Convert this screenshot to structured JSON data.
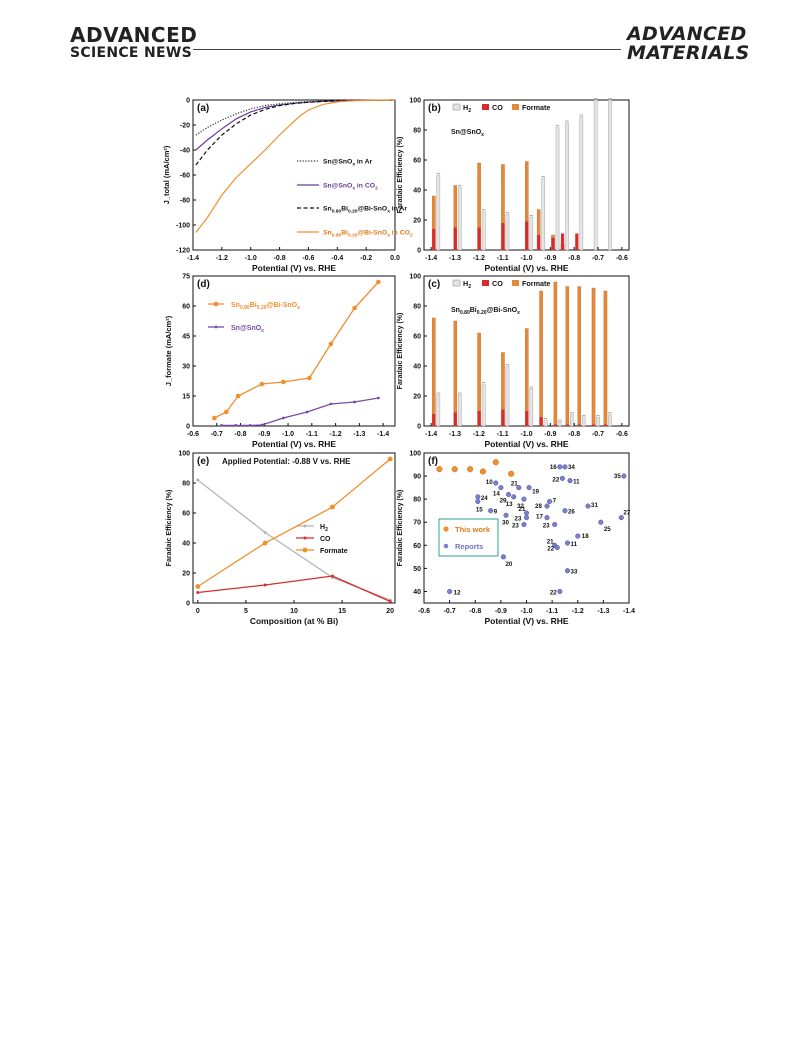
{
  "header": {
    "left_line1": "ADVANCED",
    "left_line2": "SCIENCE NEWS",
    "right_line1": "ADVANCED",
    "right_line2": "MATERIALS"
  },
  "chart_data": [
    {
      "id": "a",
      "panel_label": "(a)",
      "type": "line",
      "xlabel": "Potential (V) vs. RHE",
      "ylabel": "J_total (mA/cm²)",
      "xlim": [
        -1.4,
        0.0
      ],
      "ylim": [
        -120,
        0
      ],
      "x_reversed": false,
      "xticks": [
        -1.4,
        -1.2,
        -1.0,
        -0.8,
        -0.6,
        -0.4,
        -0.2,
        0.0
      ],
      "yticks": [
        0,
        -20,
        -40,
        -60,
        -80,
        -100,
        -120
      ],
      "legend_position": "right",
      "series": [
        {
          "name": "Sn@SnOx in Ar",
          "color": "#333333",
          "dash": "dot",
          "x": [
            -1.38,
            -1.3,
            -1.2,
            -1.1,
            -1.0,
            -0.9,
            -0.8,
            -0.7,
            -0.6,
            -0.5,
            -0.4,
            -0.3,
            -0.2,
            -0.1,
            0.0
          ],
          "y": [
            -28,
            -22,
            -16,
            -11,
            -7,
            -4.5,
            -3,
            -2,
            -1.3,
            -0.8,
            -0.5,
            -0.3,
            -0.2,
            -0.1,
            0
          ]
        },
        {
          "name": "Sn@SnOx in CO2",
          "color": "#6a3d9a",
          "dash": "solid",
          "x": [
            -1.38,
            -1.3,
            -1.2,
            -1.1,
            -1.0,
            -0.9,
            -0.8,
            -0.7,
            -0.6,
            -0.5,
            -0.4,
            -0.3,
            -0.2,
            -0.1,
            0.0
          ],
          "y": [
            -40,
            -32,
            -23,
            -15,
            -9.5,
            -6,
            -4,
            -2.6,
            -1.7,
            -1.1,
            -0.7,
            -0.4,
            -0.2,
            -0.1,
            0
          ]
        },
        {
          "name": "Sn0.80Bi0.20@Bi-SnOx in Ar",
          "color": "#111111",
          "dash": "dash",
          "x": [
            -1.38,
            -1.3,
            -1.2,
            -1.1,
            -1.0,
            -0.9,
            -0.8,
            -0.7,
            -0.6,
            -0.5,
            -0.4,
            -0.3,
            -0.2,
            -0.1,
            0.0
          ],
          "y": [
            -52,
            -40,
            -28,
            -19,
            -12,
            -7.5,
            -4.5,
            -2.8,
            -1.8,
            -1.1,
            -0.7,
            -0.4,
            -0.2,
            -0.1,
            0
          ]
        },
        {
          "name": "Sn0.80Bi0.20@Bi-SnOx in CO2",
          "color": "#f28e2b",
          "dash": "solid",
          "x": [
            -1.38,
            -1.3,
            -1.2,
            -1.1,
            -1.0,
            -0.9,
            -0.8,
            -0.7,
            -0.65,
            -0.6,
            -0.5,
            -0.4,
            -0.3,
            -0.2,
            -0.1,
            0.0
          ],
          "y": [
            -106,
            -94,
            -76,
            -62,
            -51,
            -40,
            -28,
            -17,
            -12,
            -8,
            -3.5,
            -1.5,
            -0.6,
            -0.3,
            -0.1,
            0
          ]
        }
      ]
    },
    {
      "id": "b",
      "panel_label": "(b)",
      "type": "bar",
      "annotation": "Sn@SnOx",
      "xlabel": "Potential (V) vs. RHE",
      "ylabel": "Faradaic Efficiency (%)",
      "xlim": [
        -1.43,
        -0.57
      ],
      "ylim": [
        0,
        100
      ],
      "x_reversed": true,
      "xticks": [
        -1.4,
        -1.3,
        -1.2,
        -1.1,
        -1.0,
        -0.9,
        -0.8,
        -0.7,
        -0.6
      ],
      "yticks": [
        0,
        20,
        40,
        60,
        80,
        100
      ],
      "legend_position": "top",
      "x": [
        -1.38,
        -1.29,
        -1.19,
        -1.09,
        -0.99,
        -0.94,
        -0.88,
        -0.84,
        -0.78,
        -0.72,
        -0.66
      ],
      "series": [
        {
          "name": "H2",
          "color": "#e4e4e4",
          "values": [
            50,
            42,
            26,
            24,
            22,
            48,
            82,
            85,
            89,
            100,
            100
          ]
        },
        {
          "name": "CO",
          "color": "#d92b2b",
          "values": [
            14,
            15,
            15,
            18,
            19,
            10,
            8,
            11,
            11,
            0,
            0
          ]
        },
        {
          "name": "Formate",
          "color": "#e5883a",
          "values": [
            36,
            43,
            58,
            57,
            59,
            27,
            10,
            4,
            0,
            0,
            0
          ]
        }
      ]
    },
    {
      "id": "c",
      "panel_label": "(c)",
      "type": "bar",
      "annotation": "Sn0.80Bi0.20@Bi-SnOx",
      "xlabel": "Potential (V) vs. RHE",
      "ylabel": "Faradaic Efficiency (%)",
      "xlim": [
        -1.43,
        -0.57
      ],
      "ylim": [
        0,
        100
      ],
      "x_reversed": true,
      "xticks": [
        -1.4,
        -1.3,
        -1.2,
        -1.1,
        -1.0,
        -0.9,
        -0.8,
        -0.7,
        -0.6
      ],
      "yticks": [
        0,
        20,
        40,
        60,
        80,
        100
      ],
      "legend_position": "top",
      "x": [
        -1.38,
        -1.29,
        -1.19,
        -1.09,
        -0.99,
        -0.93,
        -0.87,
        -0.82,
        -0.77,
        -0.71,
        -0.66
      ],
      "series": [
        {
          "name": "H2",
          "color": "#e4e4e4",
          "values": [
            21,
            21,
            28,
            40,
            25,
            4,
            3,
            8,
            6,
            6,
            8
          ]
        },
        {
          "name": "CO",
          "color": "#d92b2b",
          "values": [
            8,
            9,
            10,
            11,
            10,
            6,
            1,
            1,
            1,
            1,
            1
          ]
        },
        {
          "name": "Formate",
          "color": "#e5883a",
          "values": [
            72,
            70,
            62,
            49,
            65,
            90,
            96,
            93,
            93,
            92,
            90
          ]
        }
      ]
    },
    {
      "id": "d",
      "panel_label": "(d)",
      "type": "line",
      "xlabel": "Potential (V) vs. RHE",
      "ylabel": "J_formate (mA/cm²)",
      "xlim": [
        -0.6,
        -1.45
      ],
      "ylim": [
        0,
        75
      ],
      "x_reversed": true,
      "xticks": [
        -0.6,
        -0.7,
        -0.8,
        -0.9,
        -1.0,
        -1.1,
        -1.2,
        -1.3,
        -1.4
      ],
      "yticks": [
        0,
        15,
        30,
        45,
        60,
        75
      ],
      "legend_position": "top-left",
      "series": [
        {
          "name": "Sn0.80Bi0.20@Bi-SnOx",
          "color": "#f28e2b",
          "x": [
            -0.69,
            -0.74,
            -0.79,
            -0.89,
            -0.98,
            -1.09,
            -1.18,
            -1.28,
            -1.38
          ],
          "y": [
            4,
            7,
            15,
            21,
            22,
            24,
            41,
            59,
            72
          ]
        },
        {
          "name": "Sn@SnOx",
          "color": "#7b4aa8",
          "x": [
            -0.72,
            -0.78,
            -0.84,
            -0.89,
            -0.98,
            -1.08,
            -1.18,
            -1.28,
            -1.38
          ],
          "y": [
            0.3,
            0.3,
            0.3,
            0.5,
            4,
            7,
            11,
            12,
            14
          ]
        }
      ]
    },
    {
      "id": "e",
      "panel_label": "(e)",
      "type": "line",
      "annotation": "Applied Potential: -0.88 V vs. RHE",
      "xlabel": "Composition (at % Bi)",
      "ylabel": "Faradaic Efficiency (%)",
      "xlim": [
        -0.5,
        20.5
      ],
      "ylim": [
        0,
        100
      ],
      "x_reversed": false,
      "xticks": [
        0,
        5,
        10,
        15,
        20
      ],
      "yticks": [
        0,
        20,
        40,
        60,
        80,
        100
      ],
      "legend_position": "bottom-right",
      "series": [
        {
          "name": "H2",
          "color": "#b5b5b5",
          "x": [
            0,
            7,
            14,
            20
          ],
          "y": [
            82,
            47,
            17,
            2
          ]
        },
        {
          "name": "CO",
          "color": "#d92b2b",
          "x": [
            0,
            7,
            14,
            20
          ],
          "y": [
            7,
            12,
            18,
            1
          ]
        },
        {
          "name": "Formate",
          "color": "#f28e2b",
          "x": [
            0,
            7,
            14,
            20
          ],
          "y": [
            11,
            40,
            64,
            96
          ]
        }
      ]
    },
    {
      "id": "f",
      "panel_label": "(f)",
      "type": "scatter",
      "xlabel": "Potential (V) vs. RHE",
      "ylabel": "Faradaic Efficiency (%)",
      "xlim": [
        -0.6,
        -1.4
      ],
      "ylim": [
        35,
        100
      ],
      "x_reversed": true,
      "xticks": [
        -0.6,
        -0.7,
        -0.8,
        -0.9,
        -1.0,
        -1.1,
        -1.2,
        -1.3,
        -1.4
      ],
      "yticks": [
        40,
        50,
        60,
        70,
        80,
        90,
        100
      ],
      "legend_position": "center-left",
      "series": [
        {
          "name": "This work",
          "color": "#f28e2b",
          "points": [
            {
              "x": -0.66,
              "y": 93
            },
            {
              "x": -0.72,
              "y": 93
            },
            {
              "x": -0.78,
              "y": 93
            },
            {
              "x": -0.83,
              "y": 92
            },
            {
              "x": -0.88,
              "y": 96
            },
            {
              "x": -0.94,
              "y": 91
            }
          ]
        },
        {
          "name": "Reports",
          "color": "#7b7fd0",
          "points": [
            {
              "x": -1.13,
              "y": 94,
              "label": "16"
            },
            {
              "x": -1.15,
              "y": 94,
              "label": "34"
            },
            {
              "x": -1.14,
              "y": 89,
              "label": "22"
            },
            {
              "x": -1.17,
              "y": 88,
              "label": "11"
            },
            {
              "x": -1.38,
              "y": 90,
              "label": "35"
            },
            {
              "x": -0.88,
              "y": 87,
              "label": "10"
            },
            {
              "x": -0.9,
              "y": 85,
              "label": "14"
            },
            {
              "x": -0.97,
              "y": 85,
              "label": "21"
            },
            {
              "x": -1.01,
              "y": 85,
              "label": "19"
            },
            {
              "x": -0.81,
              "y": 81,
              "label": "24"
            },
            {
              "x": -0.93,
              "y": 82,
              "label": "29"
            },
            {
              "x": -0.95,
              "y": 81,
              "label": "13"
            },
            {
              "x": -0.99,
              "y": 80,
              "label": "32"
            },
            {
              "x": -1.09,
              "y": 79,
              "label": "7"
            },
            {
              "x": -1.08,
              "y": 77,
              "label": "28"
            },
            {
              "x": -0.81,
              "y": 79,
              "label": "15"
            },
            {
              "x": -1.24,
              "y": 77,
              "label": "31"
            },
            {
              "x": -1.37,
              "y": 72,
              "label": "27"
            },
            {
              "x": -0.86,
              "y": 75,
              "label": "9"
            },
            {
              "x": -1.0,
              "y": 74,
              "label": "21"
            },
            {
              "x": -0.92,
              "y": 73,
              "label": "30"
            },
            {
              "x": -1.0,
              "y": 72,
              "label": "23"
            },
            {
              "x": -1.08,
              "y": 72,
              "label": "17"
            },
            {
              "x": -1.15,
              "y": 75,
              "label": "26"
            },
            {
              "x": -0.99,
              "y": 69,
              "label": "23"
            },
            {
              "x": -1.11,
              "y": 69,
              "label": "23"
            },
            {
              "x": -1.29,
              "y": 70,
              "label": "25"
            },
            {
              "x": -1.2,
              "y": 64,
              "label": "18"
            },
            {
              "x": -1.11,
              "y": 60,
              "label": "21"
            },
            {
              "x": -1.16,
              "y": 61,
              "label": "11"
            },
            {
              "x": -1.12,
              "y": 59,
              "label": "22"
            },
            {
              "x": -0.91,
              "y": 55,
              "label": "20"
            },
            {
              "x": -1.16,
              "y": 49,
              "label": "33"
            },
            {
              "x": -0.7,
              "y": 40,
              "label": "12"
            },
            {
              "x": -1.13,
              "y": 40,
              "label": "22"
            }
          ]
        }
      ]
    }
  ]
}
